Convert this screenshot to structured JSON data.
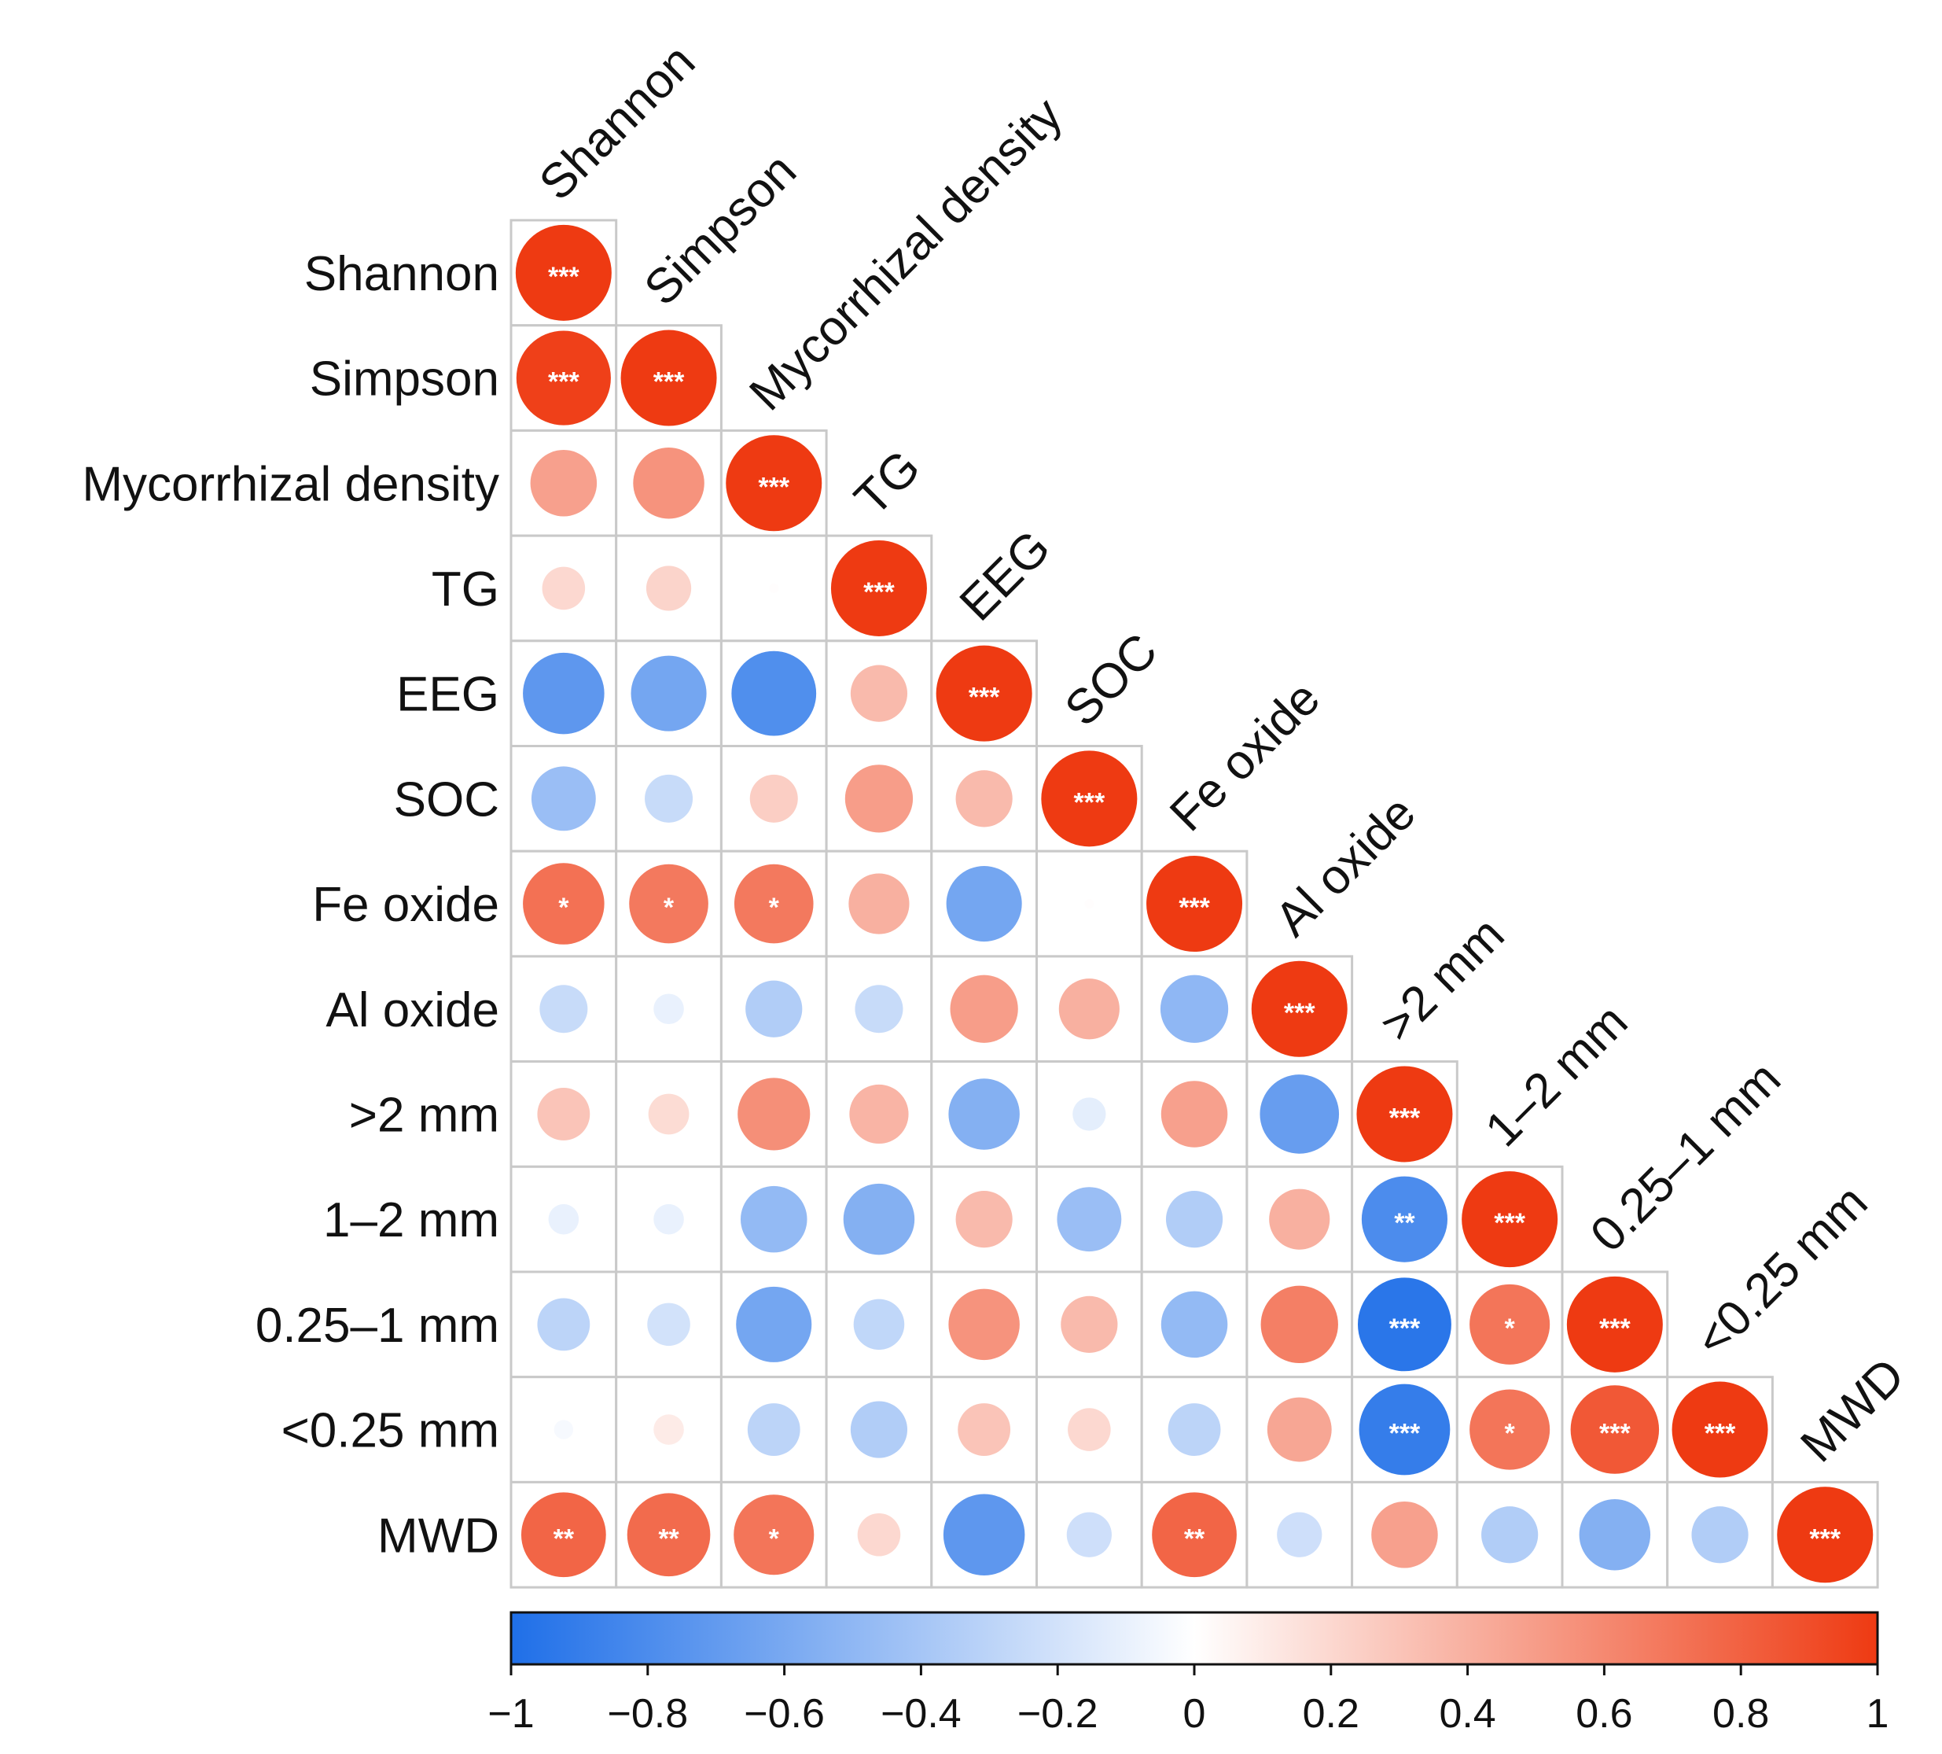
{
  "chart_data": {
    "type": "heatmap",
    "subtype": "correlation-circle-lower-triangle",
    "variables": [
      "Shannon",
      "Simpson",
      "Mycorrhizal density",
      "TG",
      "EEG",
      "SOC",
      "Fe oxide",
      "Al oxide",
      ">2 mm",
      "1–2 mm",
      "0.25–1 mm",
      "<0.25 mm",
      "MWD"
    ],
    "matrix": [
      [
        1.0
      ],
      [
        0.97,
        1.0
      ],
      [
        0.48,
        0.55,
        1.0
      ],
      [
        0.2,
        0.22,
        0.01,
        1.0
      ],
      [
        -0.72,
        -0.62,
        -0.78,
        0.35,
        1.0
      ],
      [
        -0.45,
        -0.25,
        0.25,
        0.5,
        0.35,
        1.0
      ],
      [
        0.72,
        0.68,
        0.68,
        0.4,
        -0.62,
        0.01,
        1.0
      ],
      [
        -0.25,
        -0.1,
        -0.35,
        -0.25,
        0.5,
        0.4,
        -0.5,
        1.0
      ],
      [
        0.3,
        0.18,
        0.57,
        0.38,
        -0.55,
        -0.12,
        0.48,
        -0.68,
        1.0
      ],
      [
        -0.1,
        -0.1,
        -0.48,
        -0.55,
        0.35,
        -0.45,
        -0.35,
        0.4,
        -0.8,
        1.0
      ],
      [
        -0.3,
        -0.2,
        -0.62,
        -0.28,
        0.55,
        0.35,
        -0.48,
        0.65,
        -0.95,
        0.7,
        1.0
      ],
      [
        -0.04,
        0.1,
        -0.3,
        -0.35,
        0.3,
        0.2,
        -0.3,
        0.45,
        -0.9,
        0.7,
        0.85,
        1.0
      ],
      [
        0.78,
        0.75,
        0.7,
        0.2,
        -0.72,
        -0.22,
        0.78,
        -0.22,
        0.48,
        -0.35,
        -0.55,
        -0.35,
        1.0
      ]
    ],
    "significance": [
      [
        "***"
      ],
      [
        "***",
        "***"
      ],
      [
        "",
        "",
        "***"
      ],
      [
        "",
        "",
        "",
        "***"
      ],
      [
        "",
        "",
        "",
        "",
        "***"
      ],
      [
        "",
        "",
        "",
        "",
        "",
        "***"
      ],
      [
        "*",
        "*",
        "*",
        "",
        "",
        "",
        "***"
      ],
      [
        "",
        "",
        "",
        "",
        "",
        "",
        "",
        "***"
      ],
      [
        "",
        "",
        "",
        "",
        "",
        "",
        "",
        "",
        "***"
      ],
      [
        "",
        "",
        "",
        "",
        "",
        "",
        "",
        "",
        "**",
        "***"
      ],
      [
        "",
        "",
        "",
        "",
        "",
        "",
        "",
        "",
        "***",
        "*",
        "***"
      ],
      [
        "",
        "",
        "",
        "",
        "",
        "",
        "",
        "",
        "***",
        "*",
        "***",
        "***"
      ],
      [
        "**",
        "**",
        "*",
        "",
        "",
        "",
        "**",
        "",
        "",
        "",
        "",
        "",
        "***"
      ]
    ],
    "colorbar": {
      "min": -1,
      "max": 1,
      "ticks": [
        -1,
        -0.8,
        -0.6,
        -0.4,
        -0.2,
        0,
        0.2,
        0.4,
        0.6,
        0.8,
        1
      ],
      "tick_labels": [
        "−1",
        "−0.8",
        "−0.6",
        "−0.4",
        "−0.2",
        "0",
        "0.2",
        "0.4",
        "0.6",
        "0.8",
        "1"
      ],
      "placement": "bottom"
    },
    "colors": {
      "negative": "#1f6fe8",
      "neutral": "#ffffff",
      "positive": "#ee3a12"
    }
  }
}
